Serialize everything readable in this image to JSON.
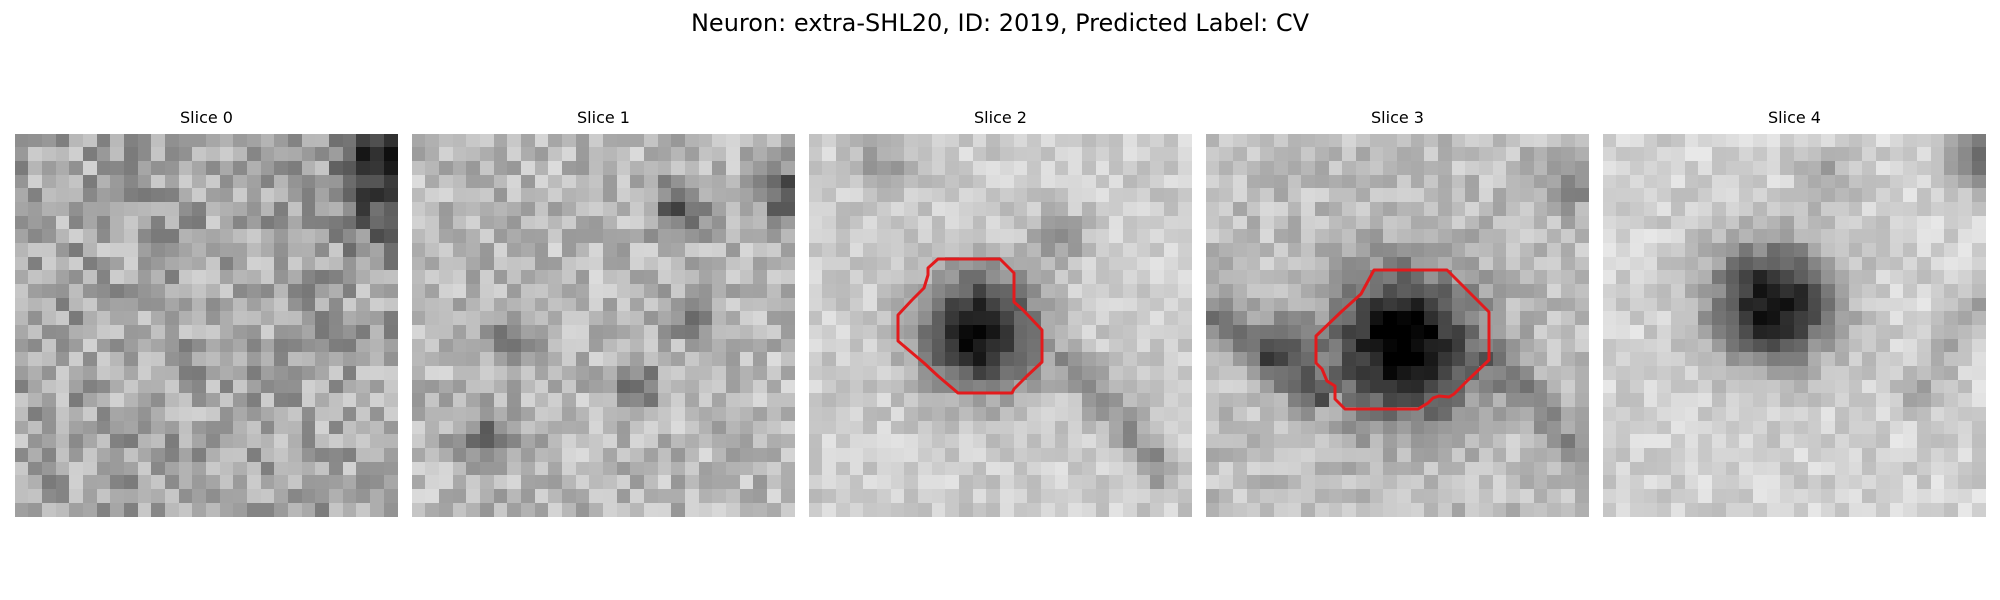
{
  "figure": {
    "title": "Neuron: extra-SHL20, ID: 2019, Predicted Label: CV"
  },
  "panels": [
    {
      "title": "Slice 0",
      "contour": false
    },
    {
      "title": "Slice 1",
      "contour": false
    },
    {
      "title": "Slice 2",
      "contour": true
    },
    {
      "title": "Slice 3",
      "contour": true
    },
    {
      "title": "Slice 4",
      "contour": false
    }
  ],
  "colors": {
    "contour": "#e31a1c",
    "colormap": "gray"
  }
}
